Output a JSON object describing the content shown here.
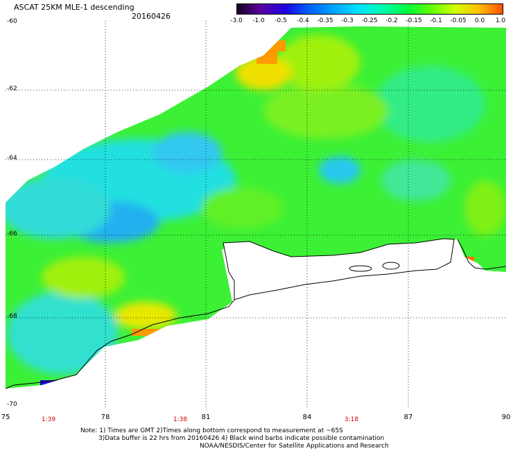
{
  "header": {
    "title": "ASCAT 25KM MLE-1 descending",
    "date": "20160426"
  },
  "colorbar": {
    "labels": [
      "-3.0",
      "-1.0",
      "-0.5",
      "-0.4",
      "-0.35",
      "-0.3",
      "-0.25",
      "-0.2",
      "-0.15",
      "-0.1",
      "-0.05",
      "0.0",
      "1.0"
    ],
    "colors": [
      "#1a0020",
      "#5a00a0",
      "#2000e0",
      "#0060ff",
      "#00a0ff",
      "#00e0ff",
      "#00ffb0",
      "#00ff40",
      "#60ff00",
      "#d0ff00",
      "#ffc000",
      "#ff5000"
    ]
  },
  "map": {
    "lat_labels": [
      "-60",
      "-62",
      "-64",
      "-66",
      "-68",
      "-70"
    ],
    "lon_labels": [
      "75",
      "78",
      "81",
      "84",
      "87",
      "90"
    ],
    "times": [
      "1:39",
      "1:38",
      "3:18"
    ]
  },
  "notes": {
    "line1": "Note: 1) Times are GMT 2)Times along bottom correspond to measurement at ~65S",
    "line2": "3)Data buffer is 22 hrs from 20160426 4) Black wind barbs indicate possible contamination",
    "line3": "NOAA/NESDIS/Center for Satellite Applications and Research"
  }
}
